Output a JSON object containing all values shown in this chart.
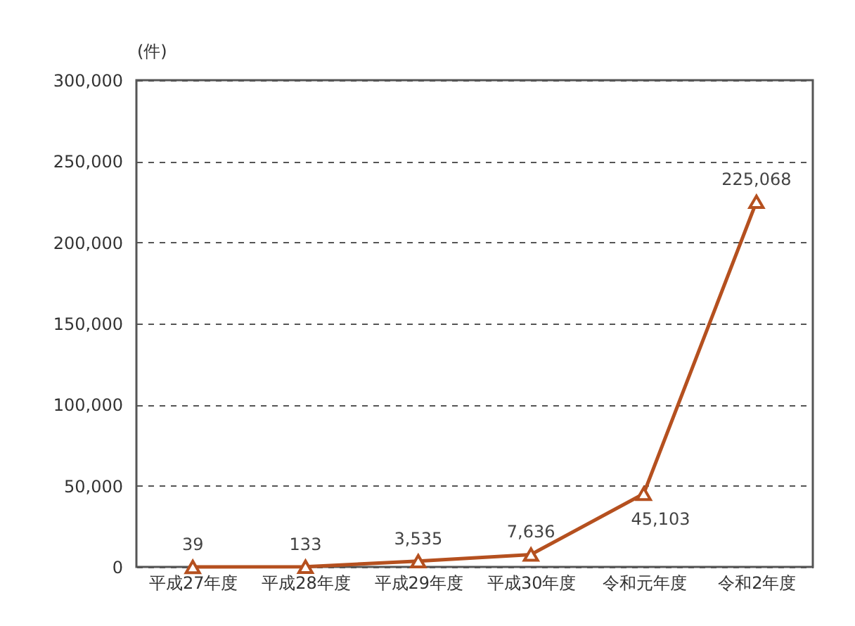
{
  "chart_data": {
    "type": "line",
    "ylabel": "(件)",
    "categories": [
      "平成27年度",
      "平成28年度",
      "平成29年度",
      "平成30年度",
      "令和元年度",
      "令和2年度"
    ],
    "series": [
      {
        "color": "#b5501f",
        "values": [
          39,
          133,
          3535,
          7636,
          45103,
          225068
        ]
      }
    ],
    "value_labels": [
      "39",
      "133",
      "3,535",
      "7,636",
      "45,103",
      "225,068"
    ],
    "ylim": [
      0,
      300000
    ],
    "yticks": [
      {
        "value": 0,
        "label": "0"
      },
      {
        "value": 50000,
        "label": "50,000"
      },
      {
        "value": 100000,
        "label": "100,000"
      },
      {
        "value": 150000,
        "label": "150,000"
      },
      {
        "value": 200000,
        "label": "200,000"
      },
      {
        "value": 250000,
        "label": "250,000"
      },
      {
        "value": 300000,
        "label": "300,000"
      }
    ],
    "grid": "y",
    "marker": "triangle",
    "line_style": "solid",
    "legend": false
  }
}
